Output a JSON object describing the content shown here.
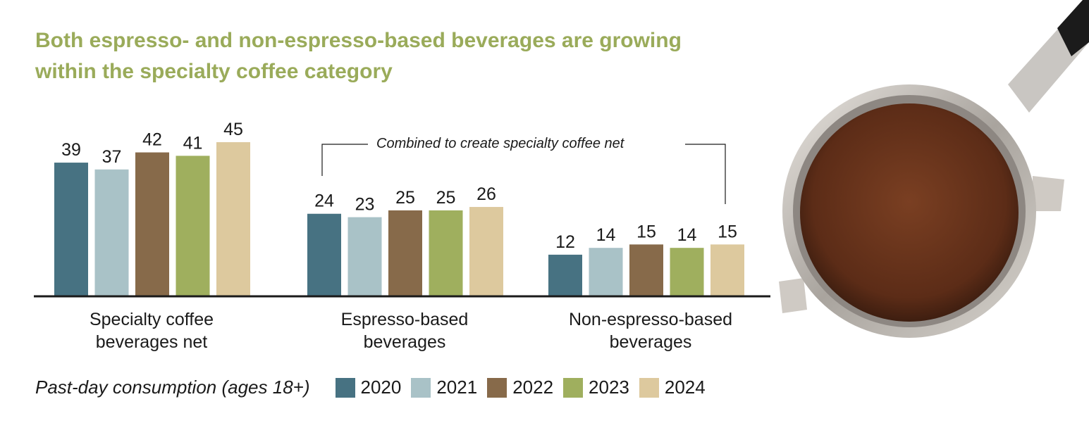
{
  "title": "Both espresso- and non-espresso-based beverages are growing within the specialty coffee category",
  "chart_data": {
    "type": "bar",
    "title": "Both espresso- and non-espresso-based beverages are growing within the specialty coffee category",
    "categories": [
      "Specialty coffee beverages net",
      "Espresso-based beverages",
      "Non-espresso-based beverages"
    ],
    "series": [
      {
        "name": "2020",
        "color": "#477282",
        "values": [
          39,
          24,
          12
        ]
      },
      {
        "name": "2021",
        "color": "#a9c2c7",
        "values": [
          37,
          23,
          14
        ]
      },
      {
        "name": "2022",
        "color": "#876a4a",
        "values": [
          42,
          25,
          15
        ]
      },
      {
        "name": "2023",
        "color": "#9faf5e",
        "values": [
          41,
          25,
          14
        ]
      },
      {
        "name": "2024",
        "color": "#ddc99e",
        "values": [
          45,
          26,
          15
        ]
      }
    ],
    "annotation": "Combined to create specialty coffee net",
    "legend_title": "Past-day consumption (ages 18+)",
    "legend_position": "bottom",
    "ylim": [
      0,
      45
    ],
    "grid": false,
    "data_labels": true
  },
  "category_lines": [
    [
      "Specialty coffee",
      "beverages net"
    ],
    [
      "Espresso-based",
      "beverages"
    ],
    [
      "Non-espresso-based",
      "beverages"
    ]
  ]
}
